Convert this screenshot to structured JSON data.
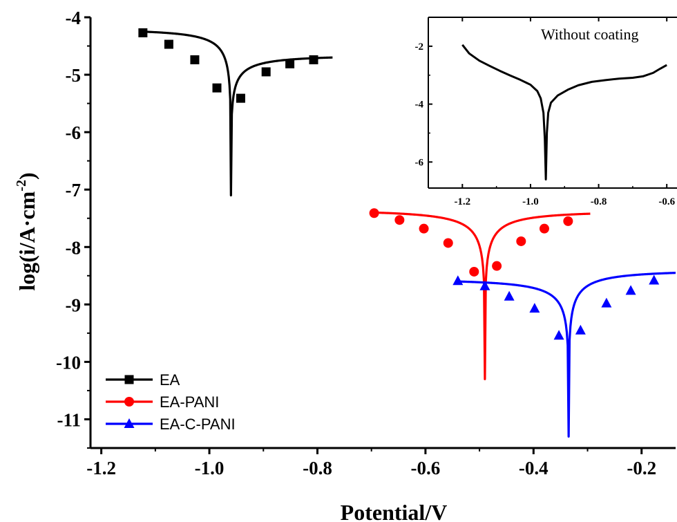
{
  "chart_data": {
    "type": "line",
    "xlabel": "Potential/V",
    "ylabel": {
      "main": "log(i/A·cm",
      "sup": "-2",
      "end": ")"
    },
    "xlim": [
      -1.22,
      -0.137
    ],
    "ylim": [
      -11.5,
      -4.0
    ],
    "xticks": [
      -1.2,
      -1.0,
      -0.8,
      -0.6,
      -0.4,
      -0.2
    ],
    "xtick_labels": [
      "-1.2",
      "-1.0",
      "-0.8",
      "-0.6",
      "-0.4",
      "-0.2"
    ],
    "yticks": [
      -4,
      -5,
      -6,
      -7,
      -8,
      -9,
      -10,
      -11
    ],
    "ytick_labels": [
      "-4",
      "-5",
      "-6",
      "-7",
      "-8",
      "-9",
      "-10",
      "-11"
    ],
    "grid": false,
    "legend": {
      "position": "bottom-left"
    },
    "series": [
      {
        "name": "EA",
        "color": "#000000",
        "marker": "square",
        "ecorr": -0.96,
        "min_y": -7.1,
        "left": {
          "x0": -1.123,
          "y0": -4.25
        },
        "right": {
          "x1": -0.772,
          "y1": -4.7
        },
        "markers": [
          [
            -1.123,
            -4.27
          ],
          [
            -1.075,
            -4.47
          ],
          [
            -1.027,
            -4.74
          ],
          [
            -0.986,
            -5.23
          ],
          [
            -0.942,
            -5.41
          ],
          [
            -0.895,
            -4.95
          ],
          [
            -0.851,
            -4.81
          ],
          [
            -0.807,
            -4.74
          ]
        ]
      },
      {
        "name": "EA-PANI",
        "color": "#ff0000",
        "marker": "circle",
        "ecorr": -0.49,
        "min_y": -10.3,
        "left": {
          "x0": -0.695,
          "y0": -7.4
        },
        "right": {
          "x1": -0.295,
          "y1": -7.42
        },
        "markers": [
          [
            -0.695,
            -7.41
          ],
          [
            -0.648,
            -7.53
          ],
          [
            -0.603,
            -7.68
          ],
          [
            -0.558,
            -7.93
          ],
          [
            -0.51,
            -8.43
          ],
          [
            -0.468,
            -8.33
          ],
          [
            -0.423,
            -7.9
          ],
          [
            -0.38,
            -7.68
          ],
          [
            -0.336,
            -7.55
          ]
        ]
      },
      {
        "name": "EA-C-PANI",
        "color": "#0000ff",
        "marker": "triangle",
        "ecorr": -0.335,
        "min_y": -11.3,
        "left": {
          "x0": -0.54,
          "y0": -8.6
        },
        "right": {
          "x1": -0.137,
          "y1": -8.45
        },
        "markers": [
          [
            -0.54,
            -8.59
          ],
          [
            -0.49,
            -8.68
          ],
          [
            -0.445,
            -8.86
          ],
          [
            -0.398,
            -9.07
          ],
          [
            -0.353,
            -9.54
          ],
          [
            -0.313,
            -9.45
          ],
          [
            -0.265,
            -8.98
          ],
          [
            -0.22,
            -8.76
          ],
          [
            -0.177,
            -8.58
          ]
        ]
      }
    ],
    "inset": {
      "title": "Without coating",
      "xlim": [
        -1.3,
        -0.57
      ],
      "ylim": [
        -6.9,
        -1.0
      ],
      "xticks": [
        -1.2,
        -1.0,
        -0.8,
        -0.6
      ],
      "xtick_labels": [
        "-1.2",
        "-1.0",
        "-0.8",
        "-0.6"
      ],
      "yticks": [
        -2,
        -4,
        -6
      ],
      "ytick_labels": [
        "-2",
        "-4",
        "-6"
      ],
      "series": [
        {
          "color": "#000000",
          "points": [
            [
              -1.2,
              -1.95
            ],
            [
              -1.18,
              -2.25
            ],
            [
              -1.15,
              -2.5
            ],
            [
              -1.12,
              -2.68
            ],
            [
              -1.09,
              -2.85
            ],
            [
              -1.06,
              -3.01
            ],
            [
              -1.03,
              -3.16
            ],
            [
              -1.0,
              -3.33
            ],
            [
              -0.98,
              -3.55
            ],
            [
              -0.97,
              -3.8
            ],
            [
              -0.962,
              -4.3
            ],
            [
              -0.958,
              -5.2
            ],
            [
              -0.955,
              -6.6
            ],
            [
              -0.952,
              -5.0
            ],
            [
              -0.948,
              -4.3
            ],
            [
              -0.94,
              -3.95
            ],
            [
              -0.92,
              -3.7
            ],
            [
              -0.89,
              -3.5
            ],
            [
              -0.86,
              -3.35
            ],
            [
              -0.82,
              -3.23
            ],
            [
              -0.78,
              -3.17
            ],
            [
              -0.74,
              -3.12
            ],
            [
              -0.7,
              -3.09
            ],
            [
              -0.67,
              -3.04
            ],
            [
              -0.64,
              -2.92
            ],
            [
              -0.62,
              -2.78
            ],
            [
              -0.6,
              -2.65
            ]
          ]
        }
      ]
    }
  }
}
